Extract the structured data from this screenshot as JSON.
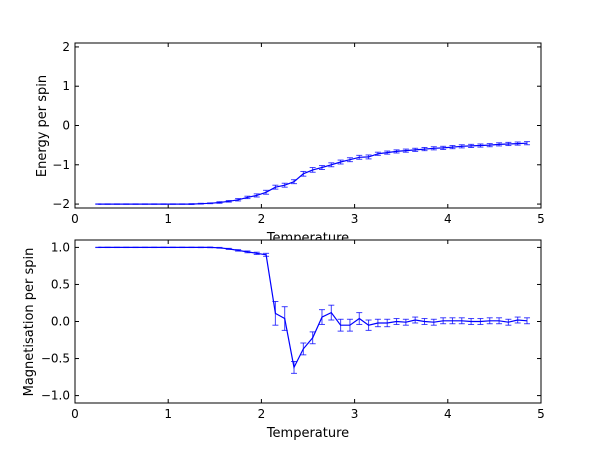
{
  "chart_data": [
    {
      "type": "line",
      "title": "",
      "xlabel": "Temperature",
      "ylabel": "Energy per spin",
      "xlim": [
        0,
        5
      ],
      "ylim": [
        -2.1,
        2.1
      ],
      "xticks": [
        "0",
        "1",
        "2",
        "3",
        "4",
        "5"
      ],
      "yticks": [
        "−2",
        "−1",
        "0",
        "1",
        "2"
      ],
      "ytick_values": [
        -2,
        -1,
        0,
        1,
        2
      ],
      "grid": false,
      "color": "#0000ff",
      "x": [
        0.25,
        0.35,
        0.45,
        0.55,
        0.65,
        0.75,
        0.85,
        0.95,
        1.05,
        1.15,
        1.25,
        1.35,
        1.45,
        1.55,
        1.65,
        1.75,
        1.85,
        1.95,
        2.05,
        2.15,
        2.25,
        2.35,
        2.45,
        2.55,
        2.65,
        2.75,
        2.85,
        2.95,
        3.05,
        3.15,
        3.25,
        3.35,
        3.45,
        3.55,
        3.65,
        3.75,
        3.85,
        3.95,
        4.05,
        4.15,
        4.25,
        4.35,
        4.45,
        4.55,
        4.65,
        4.75,
        4.85
      ],
      "y": [
        -2.0,
        -2.0,
        -2.0,
        -2.0,
        -2.0,
        -2.0,
        -2.0,
        -2.0,
        -2.0,
        -2.0,
        -2.0,
        -1.99,
        -1.98,
        -1.96,
        -1.93,
        -1.89,
        -1.83,
        -1.78,
        -1.7,
        -1.57,
        -1.52,
        -1.43,
        -1.23,
        -1.13,
        -1.07,
        -1.0,
        -0.93,
        -0.87,
        -0.81,
        -0.8,
        -0.72,
        -0.69,
        -0.66,
        -0.64,
        -0.62,
        -0.6,
        -0.58,
        -0.57,
        -0.55,
        -0.53,
        -0.52,
        -0.51,
        -0.5,
        -0.48,
        -0.47,
        -0.46,
        -0.45
      ],
      "yerr": [
        0.005,
        0.005,
        0.005,
        0.005,
        0.005,
        0.005,
        0.005,
        0.005,
        0.005,
        0.005,
        0.01,
        0.01,
        0.01,
        0.02,
        0.02,
        0.03,
        0.03,
        0.04,
        0.05,
        0.05,
        0.05,
        0.05,
        0.06,
        0.06,
        0.05,
        0.05,
        0.05,
        0.05,
        0.05,
        0.05,
        0.04,
        0.04,
        0.04,
        0.04,
        0.04,
        0.04,
        0.04,
        0.04,
        0.04,
        0.04,
        0.04,
        0.04,
        0.04,
        0.04,
        0.04,
        0.04,
        0.04
      ]
    },
    {
      "type": "line",
      "title": "",
      "xlabel": "Temperature",
      "ylabel": "Magnetisation per spin",
      "xlim": [
        0,
        5
      ],
      "ylim": [
        -1.1,
        1.1
      ],
      "xticks": [
        "0",
        "1",
        "2",
        "3",
        "4",
        "5"
      ],
      "yticks": [
        "−1.0",
        "−0.5",
        "0.0",
        "0.5",
        "1.0"
      ],
      "ytick_values": [
        -1.0,
        -0.5,
        0.0,
        0.5,
        1.0
      ],
      "grid": false,
      "color": "#0000ff",
      "x": [
        0.25,
        0.35,
        0.45,
        0.55,
        0.65,
        0.75,
        0.85,
        0.95,
        1.05,
        1.15,
        1.25,
        1.35,
        1.45,
        1.55,
        1.65,
        1.75,
        1.85,
        1.95,
        2.05,
        2.15,
        2.25,
        2.35,
        2.45,
        2.55,
        2.65,
        2.75,
        2.85,
        2.95,
        3.05,
        3.15,
        3.25,
        3.35,
        3.45,
        3.55,
        3.65,
        3.75,
        3.85,
        3.95,
        4.05,
        4.15,
        4.25,
        4.35,
        4.45,
        4.55,
        4.65,
        4.75,
        4.85
      ],
      "y": [
        1.0,
        1.0,
        1.0,
        1.0,
        1.0,
        1.0,
        1.0,
        1.0,
        1.0,
        1.0,
        1.0,
        1.0,
        1.0,
        0.995,
        0.98,
        0.96,
        0.94,
        0.92,
        0.9,
        0.11,
        0.04,
        -0.62,
        -0.37,
        -0.22,
        0.06,
        0.12,
        -0.05,
        -0.05,
        0.04,
        -0.05,
        -0.02,
        -0.02,
        0.0,
        -0.01,
        0.02,
        0.0,
        -0.01,
        0.01,
        0.01,
        0.01,
        0.0,
        0.0,
        0.01,
        0.01,
        -0.01,
        0.02,
        0.01
      ],
      "yerr": [
        0.002,
        0.002,
        0.002,
        0.002,
        0.002,
        0.002,
        0.002,
        0.002,
        0.002,
        0.002,
        0.002,
        0.003,
        0.004,
        0.005,
        0.007,
        0.01,
        0.012,
        0.015,
        0.02,
        0.16,
        0.16,
        0.08,
        0.08,
        0.08,
        0.1,
        0.1,
        0.08,
        0.08,
        0.08,
        0.07,
        0.05,
        0.05,
        0.04,
        0.04,
        0.04,
        0.04,
        0.04,
        0.04,
        0.04,
        0.04,
        0.04,
        0.04,
        0.04,
        0.04,
        0.04,
        0.04,
        0.04
      ]
    }
  ]
}
